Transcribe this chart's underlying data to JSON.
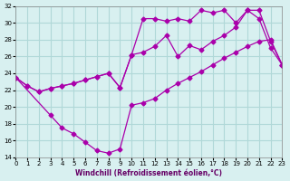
{
  "xlabel": "Windchill (Refroidissement éolien,°C)",
  "bg_color": "#d8f0f0",
  "grid_color": "#b0d8d8",
  "line_color": "#aa00aa",
  "xlim": [
    0,
    23
  ],
  "ylim": [
    14,
    32
  ],
  "yticks": [
    14,
    16,
    18,
    20,
    22,
    24,
    26,
    28,
    30,
    32
  ],
  "xticks": [
    0,
    1,
    2,
    3,
    4,
    5,
    6,
    7,
    8,
    9,
    10,
    11,
    12,
    13,
    14,
    15,
    16,
    17,
    18,
    19,
    20,
    21,
    22,
    23
  ],
  "line1_x": [
    0,
    1,
    2,
    3,
    4,
    5,
    6,
    7,
    8,
    9,
    10,
    11,
    12,
    13,
    14,
    15,
    16,
    17,
    18,
    19,
    20,
    21,
    22,
    23
  ],
  "line1_y": [
    23.5,
    22.5,
    21.8,
    22.2,
    22.5,
    22.8,
    23.2,
    23.6,
    24.0,
    22.3,
    26.2,
    26.5,
    27.2,
    28.5,
    26.0,
    27.3,
    26.8,
    27.8,
    28.5,
    29.5,
    31.5,
    30.5,
    27.0,
    25.0
  ],
  "line2_x": [
    0,
    1,
    2,
    3,
    4,
    5,
    6,
    7,
    8,
    9,
    10,
    11,
    12,
    13,
    14,
    15,
    16,
    17,
    18,
    19,
    20,
    21,
    22,
    23
  ],
  "line2_y": [
    23.5,
    22.5,
    21.8,
    22.2,
    22.5,
    22.8,
    23.2,
    23.6,
    24.0,
    22.3,
    26.2,
    30.5,
    30.5,
    30.2,
    30.5,
    30.2,
    31.5,
    31.2,
    31.5,
    30.0,
    31.5,
    31.5,
    27.8,
    25.0
  ],
  "line3_x": [
    0,
    3,
    4,
    5,
    6,
    7,
    8,
    9,
    10,
    11,
    12,
    13,
    14,
    15,
    16,
    17,
    18,
    19,
    20,
    21,
    22,
    23
  ],
  "line3_y": [
    23.5,
    19.0,
    17.5,
    16.8,
    15.8,
    14.8,
    14.5,
    15.0,
    20.2,
    20.5,
    21.0,
    22.0,
    22.8,
    23.5,
    24.2,
    25.0,
    25.8,
    26.5,
    27.2,
    27.8,
    28.0,
    25.0
  ]
}
